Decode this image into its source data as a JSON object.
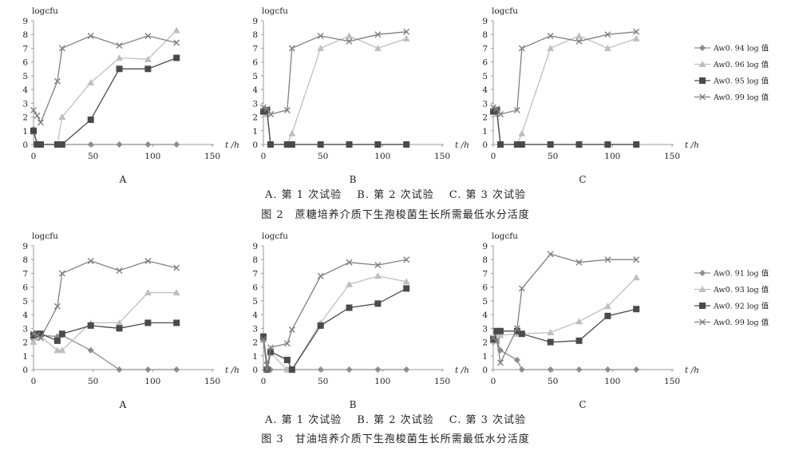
{
  "figures": [
    {
      "subcaption": "A. 第 1 次试验　 B. 第 2 次试验　 C. 第 3 次试验",
      "caption": "图 2　蔗糖培养介质下生孢梭菌生长所需最低水分活度",
      "legend": [
        "Aw0. 94 log 值",
        "Aw0. 96 log 值",
        "Aw0. 95 log 值",
        "Aw0. 99 log 值"
      ]
    },
    {
      "subcaption": "A. 第 1 次试验　 B. 第 2 次试验　 C. 第 3 次试验",
      "caption": "图 3　甘油培养介质下生孢梭菌生长所需最低水分活度",
      "legend": [
        "Aw0. 91 log 值",
        "Aw0. 93 log 值",
        "Aw0. 92 log 值",
        "Aw0. 99 log 值"
      ]
    }
  ],
  "styles": {
    "series_colors": [
      "#8c8c8c",
      "#bfbfbf",
      "#4a4a4a",
      "#808080"
    ],
    "series_markers": [
      "diamond",
      "triangle",
      "square",
      "x"
    ]
  },
  "chart_data": [
    {
      "type": "line",
      "figure": 0,
      "panel": "A",
      "ylabel": "logcfu",
      "xlabel": "t /h",
      "xlim": [
        0,
        150
      ],
      "ylim": [
        0,
        9
      ],
      "xticks": [
        0,
        50,
        100,
        150
      ],
      "yticks": [
        0,
        1,
        2,
        3,
        4,
        5,
        6,
        7,
        8,
        9
      ],
      "series": [
        {
          "name": "Aw0. 94 log 值",
          "x": [
            0,
            3,
            6,
            20,
            24,
            48,
            72,
            96,
            120
          ],
          "y": [
            1.1,
            0,
            0,
            0,
            0,
            0,
            0,
            0,
            0
          ]
        },
        {
          "name": "Aw0. 96 log 值",
          "x": [
            0,
            3,
            6,
            20,
            24,
            48,
            72,
            96,
            120
          ],
          "y": [
            0.9,
            0.1,
            0,
            0,
            2,
            4.5,
            6.3,
            6.2,
            8.3
          ]
        },
        {
          "name": "Aw0. 95 log 值",
          "x": [
            0,
            3,
            6,
            20,
            24,
            48,
            72,
            96,
            120
          ],
          "y": [
            1,
            0,
            0,
            0,
            0,
            1.8,
            5.5,
            5.5,
            6.3
          ]
        },
        {
          "name": "Aw0. 99 log 值",
          "x": [
            0,
            3,
            6,
            20,
            24,
            48,
            72,
            96,
            120
          ],
          "y": [
            2.5,
            2.1,
            1.6,
            4.6,
            7,
            7.9,
            7.2,
            7.9,
            7.4
          ]
        }
      ]
    },
    {
      "type": "line",
      "figure": 0,
      "panel": "B",
      "ylabel": "logcfu",
      "xlabel": "t /h",
      "xlim": [
        0,
        150
      ],
      "ylim": [
        0,
        9
      ],
      "xticks": [
        0,
        50,
        100,
        150
      ],
      "yticks": [
        0,
        1,
        2,
        3,
        4,
        5,
        6,
        7,
        8,
        9
      ],
      "series": [
        {
          "name": "Aw0. 94 log 值",
          "x": [
            0,
            3,
            6,
            20,
            24,
            48,
            72,
            96,
            120
          ],
          "y": [
            2.5,
            2.3,
            0,
            0,
            0,
            0,
            0,
            0,
            0
          ]
        },
        {
          "name": "Aw0. 96 log 值",
          "x": [
            0,
            3,
            6,
            20,
            24,
            48,
            72,
            96,
            120
          ],
          "y": [
            2.6,
            2.2,
            0,
            0,
            0.8,
            7,
            7.9,
            7,
            7.7
          ]
        },
        {
          "name": "Aw0. 95 log 值",
          "x": [
            0,
            3,
            6,
            20,
            24,
            48,
            72,
            96,
            120
          ],
          "y": [
            2.4,
            2.5,
            0,
            0,
            0,
            0,
            0,
            0,
            0
          ]
        },
        {
          "name": "Aw0. 99 log 值",
          "x": [
            0,
            3,
            6,
            20,
            24,
            48,
            72,
            96,
            120
          ],
          "y": [
            2.7,
            2.6,
            2.2,
            2.5,
            7,
            7.9,
            7.5,
            8,
            8.2
          ]
        }
      ]
    },
    {
      "type": "line",
      "figure": 0,
      "panel": "C",
      "ylabel": "logcfu",
      "xlabel": "t /h",
      "xlim": [
        0,
        150
      ],
      "ylim": [
        0,
        9
      ],
      "xticks": [
        0,
        50,
        100,
        150
      ],
      "yticks": [
        0,
        1,
        2,
        3,
        4,
        5,
        6,
        7,
        8,
        9
      ],
      "series": [
        {
          "name": "Aw0. 94 log 值",
          "x": [
            0,
            3,
            6,
            20,
            24,
            48,
            72,
            96,
            120
          ],
          "y": [
            2.5,
            2.3,
            0,
            0,
            0,
            0,
            0,
            0,
            0
          ]
        },
        {
          "name": "Aw0. 96 log 值",
          "x": [
            0,
            3,
            6,
            20,
            24,
            48,
            72,
            96,
            120
          ],
          "y": [
            2.6,
            2.2,
            0,
            0,
            0.8,
            7,
            7.9,
            7,
            7.7
          ]
        },
        {
          "name": "Aw0. 95 log 值",
          "x": [
            0,
            3,
            6,
            20,
            24,
            48,
            72,
            96,
            120
          ],
          "y": [
            2.4,
            2.5,
            0,
            0,
            0,
            0,
            0,
            0,
            0
          ]
        },
        {
          "name": "Aw0. 99 log 值",
          "x": [
            0,
            3,
            6,
            20,
            24,
            48,
            72,
            96,
            120
          ],
          "y": [
            2.7,
            2.6,
            2.2,
            2.5,
            7,
            7.9,
            7.5,
            8,
            8.2
          ]
        }
      ]
    },
    {
      "type": "line",
      "figure": 1,
      "panel": "A",
      "ylabel": "logcfu",
      "xlabel": "t /h",
      "xlim": [
        0,
        150
      ],
      "ylim": [
        0,
        9
      ],
      "xticks": [
        0,
        50,
        100,
        150
      ],
      "yticks": [
        0,
        1,
        2,
        3,
        4,
        5,
        6,
        7,
        8,
        9
      ],
      "series": [
        {
          "name": "Aw0. 91 log 值",
          "x": [
            0,
            3,
            6,
            20,
            24,
            48,
            72,
            96,
            120
          ],
          "y": [
            2.2,
            2.6,
            2.5,
            2.4,
            2.5,
            1.4,
            0,
            0,
            0
          ]
        },
        {
          "name": "Aw0. 93 log 值",
          "x": [
            0,
            3,
            6,
            20,
            24,
            48,
            72,
            96,
            120
          ],
          "y": [
            2,
            2.3,
            2.4,
            1.4,
            1.4,
            3.4,
            3.4,
            5.6,
            5.6
          ]
        },
        {
          "name": "Aw0. 92 log 值",
          "x": [
            0,
            3,
            6,
            20,
            24,
            48,
            72,
            96,
            120
          ],
          "y": [
            2.5,
            2.6,
            2.6,
            2.1,
            2.6,
            3.2,
            3,
            3.4,
            3.4
          ]
        },
        {
          "name": "Aw0. 99 log 值",
          "x": [
            0,
            3,
            6,
            20,
            24,
            48,
            72,
            96,
            120
          ],
          "y": [
            2.6,
            2.5,
            2.3,
            4.6,
            7,
            7.9,
            7.2,
            7.9,
            7.4
          ]
        }
      ]
    },
    {
      "type": "line",
      "figure": 1,
      "panel": "B",
      "ylabel": "logcfu",
      "xlabel": "t /h",
      "xlim": [
        0,
        150
      ],
      "ylim": [
        0,
        9
      ],
      "xticks": [
        0,
        50,
        100,
        150
      ],
      "yticks": [
        0,
        1,
        2,
        3,
        4,
        5,
        6,
        7,
        8,
        9
      ],
      "series": [
        {
          "name": "Aw0. 91 log 值",
          "x": [
            0,
            3,
            6,
            20,
            24,
            48,
            72,
            96,
            120
          ],
          "y": [
            2.4,
            0.5,
            0,
            0,
            0,
            0,
            0,
            0,
            0
          ]
        },
        {
          "name": "Aw0. 93 log 值",
          "x": [
            0,
            3,
            6,
            20,
            24,
            48,
            72,
            96,
            120
          ],
          "y": [
            2.3,
            0,
            1.2,
            0,
            0,
            3.4,
            6.2,
            6.8,
            6.4
          ]
        },
        {
          "name": "Aw0. 92 log 值",
          "x": [
            0,
            3,
            6,
            20,
            24,
            48,
            72,
            96,
            120
          ],
          "y": [
            2.4,
            0,
            1.3,
            0.7,
            0,
            3.2,
            4.5,
            4.8,
            5.9
          ]
        },
        {
          "name": "Aw0. 99 log 值",
          "x": [
            0,
            3,
            6,
            20,
            24,
            48,
            72,
            96,
            120
          ],
          "y": [
            2.2,
            0,
            1.6,
            1.9,
            2.9,
            6.8,
            7.8,
            7.6,
            8
          ]
        }
      ]
    },
    {
      "type": "line",
      "figure": 1,
      "panel": "C",
      "ylabel": "logcfu",
      "xlabel": "t /h",
      "xlim": [
        0,
        150
      ],
      "ylim": [
        0,
        9
      ],
      "xticks": [
        0,
        50,
        100,
        150
      ],
      "yticks": [
        0,
        1,
        2,
        3,
        4,
        5,
        6,
        7,
        8,
        9
      ],
      "series": [
        {
          "name": "Aw0. 91 log 值",
          "x": [
            0,
            3,
            6,
            20,
            24,
            48,
            72,
            96,
            120
          ],
          "y": [
            2,
            2.1,
            1.4,
            0.7,
            0,
            0,
            0,
            0,
            0
          ]
        },
        {
          "name": "Aw0. 93 log 值",
          "x": [
            0,
            3,
            6,
            20,
            24,
            48,
            72,
            96,
            120
          ],
          "y": [
            2.1,
            2.6,
            2.5,
            2.6,
            2.6,
            2.7,
            3.5,
            4.6,
            6.7
          ]
        },
        {
          "name": "Aw0. 92 log 值",
          "x": [
            0,
            3,
            6,
            20,
            24,
            48,
            72,
            96,
            120
          ],
          "y": [
            2.2,
            2.8,
            2.8,
            2.8,
            2.6,
            2,
            2.1,
            3.9,
            4.4
          ]
        },
        {
          "name": "Aw0. 99 log 值",
          "x": [
            0,
            3,
            6,
            20,
            24,
            48,
            72,
            96,
            120
          ],
          "y": [
            2.3,
            2.1,
            0.5,
            3,
            5.9,
            8.4,
            7.8,
            8,
            8
          ]
        }
      ]
    }
  ]
}
